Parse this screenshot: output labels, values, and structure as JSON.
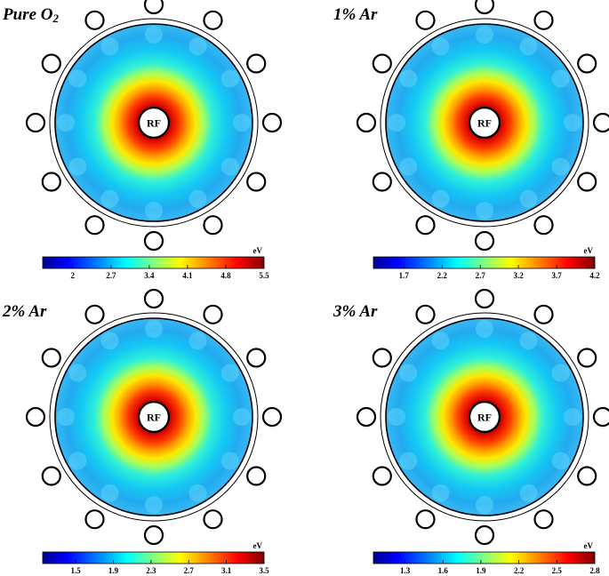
{
  "panels": [
    {
      "title": "Pure O",
      "title_sub": "2",
      "center_label": "RF",
      "colorbar": {
        "unit": "eV",
        "ticks": [
          "2",
          "2.7",
          "3.4",
          "4.1",
          "4.8",
          "5.5"
        ],
        "range": [
          1.45,
          5.5
        ],
        "tick_values": [
          2,
          2.7,
          3.4,
          4.1,
          4.8,
          5.5
        ]
      }
    },
    {
      "title": "1% Ar",
      "title_sub": "",
      "center_label": "RF",
      "colorbar": {
        "unit": "eV",
        "ticks": [
          "1.7",
          "2.2",
          "2.7",
          "3.2",
          "3.7",
          "4.2"
        ],
        "range": [
          1.3,
          4.2
        ],
        "tick_values": [
          1.7,
          2.2,
          2.7,
          3.2,
          3.7,
          4.2
        ]
      }
    },
    {
      "title": "2% Ar",
      "title_sub": "",
      "center_label": "RF",
      "colorbar": {
        "unit": "eV",
        "ticks": [
          "1.5",
          "1.9",
          "2.3",
          "2.7",
          "3.1",
          "3.5"
        ],
        "range": [
          1.15,
          3.5
        ],
        "tick_values": [
          1.5,
          1.9,
          2.3,
          2.7,
          3.1,
          3.5
        ]
      }
    },
    {
      "title": "3% Ar",
      "title_sub": "",
      "center_label": "RF",
      "colorbar": {
        "unit": "eV",
        "ticks": [
          "1.3",
          "1.6",
          "1.9",
          "2.2",
          "2.5",
          "2.8"
        ],
        "range": [
          1.05,
          2.8
        ],
        "tick_values": [
          1.3,
          1.6,
          1.9,
          2.2,
          2.5,
          2.8
        ]
      }
    }
  ],
  "colors": {
    "colormap": [
      "#00008f",
      "#0000ff",
      "#0080ff",
      "#00ffff",
      "#80ff80",
      "#ffff00",
      "#ff8000",
      "#ff0000",
      "#800000"
    ]
  },
  "icons": {
    "coil_marker": "coil-circle-icon",
    "rf_source": "rf-source-icon"
  }
}
